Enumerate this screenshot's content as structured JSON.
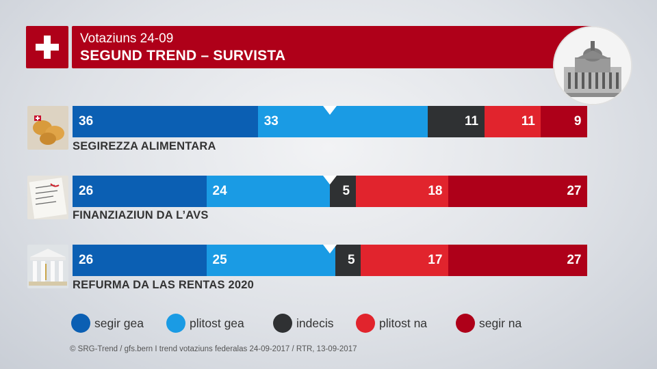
{
  "header": {
    "subtitle": "Votaziuns 24-09",
    "title": "SEGUND TREND – SURVISTA"
  },
  "colors": {
    "segir_gea": "#0b5fb3",
    "plitost_gea": "#1a9be4",
    "indecis": "#2f3133",
    "plitost_na": "#e1242d",
    "segir_na": "#ae0019",
    "brand_red": "#af0019"
  },
  "chart_data": {
    "type": "bar",
    "orientation": "horizontal",
    "stacked": true,
    "xlim": [
      0,
      100
    ],
    "categories": [
      "SEGIREZZA ALIMENTARA",
      "FINANZIAZIUN DA L’AVS",
      "REFURMA DA LAS RENTAS 2020"
    ],
    "series": [
      {
        "name": "segir gea",
        "color": "#0b5fb3",
        "values": [
          36,
          26,
          26
        ]
      },
      {
        "name": "plitost gea",
        "color": "#1a9be4",
        "values": [
          33,
          24,
          25
        ]
      },
      {
        "name": "indecis",
        "color": "#2f3133",
        "values": [
          11,
          5,
          5
        ]
      },
      {
        "name": "plitost na",
        "color": "#e1242d",
        "values": [
          11,
          18,
          17
        ]
      },
      {
        "name": "segir na",
        "color": "#ae0019",
        "values": [
          9,
          27,
          27
        ]
      }
    ],
    "marker_value": 50,
    "legend_position": "bottom"
  },
  "footer": "© SRG-Trend / gfs.bern  I  trend votaziuns federalas 24-09-2017 / RTR, 13-09-2017"
}
